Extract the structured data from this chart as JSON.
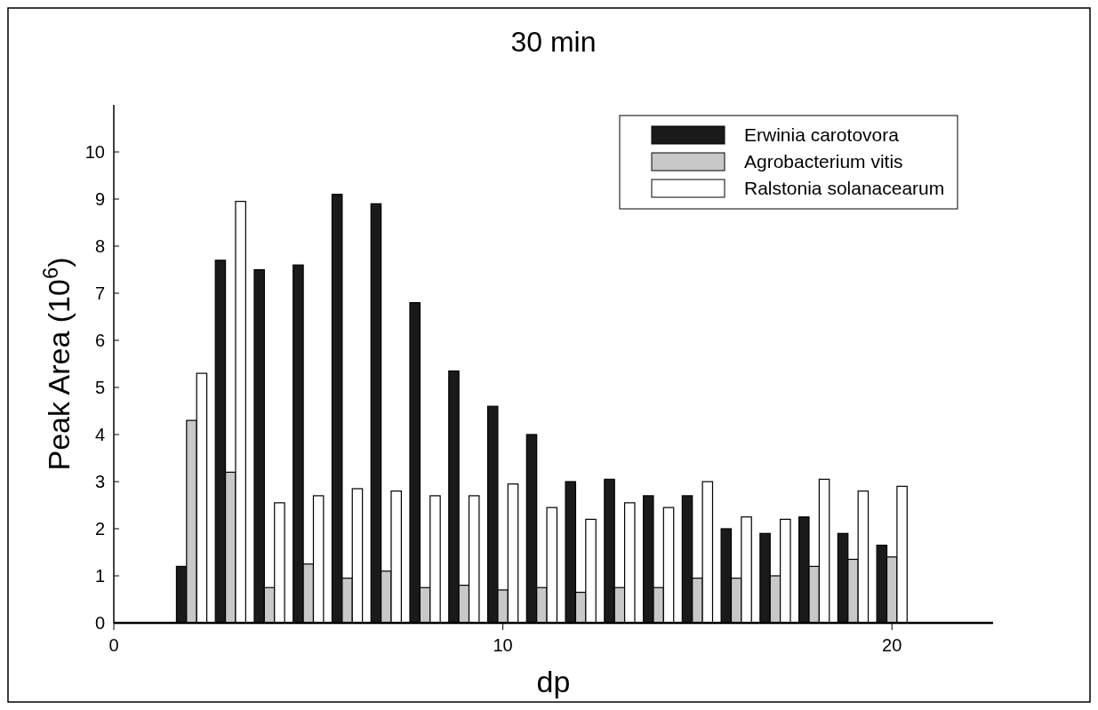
{
  "chart_data": {
    "type": "bar",
    "title": "30 min",
    "xlabel": "dp",
    "ylabel": "Peak Area   (10$^{6}$)",
    "x": [
      2,
      3,
      4,
      5,
      6,
      7,
      8,
      9,
      10,
      11,
      12,
      13,
      14,
      15,
      16,
      17,
      18,
      19,
      20
    ],
    "series": [
      {
        "name": "Erwinia carotovora",
        "color": "#1a1a1a",
        "values": [
          1.2,
          7.7,
          7.5,
          7.6,
          9.1,
          8.9,
          6.8,
          5.35,
          4.6,
          4.0,
          3.0,
          3.05,
          2.7,
          2.7,
          2.0,
          1.9,
          2.25,
          1.9,
          1.65
        ]
      },
      {
        "name": "Agrobacterium vitis",
        "color": "#c8c8c8",
        "values": [
          4.3,
          3.2,
          0.75,
          1.25,
          0.95,
          1.1,
          0.75,
          0.8,
          0.7,
          0.75,
          0.65,
          0.75,
          0.75,
          0.95,
          0.95,
          1.0,
          1.2,
          1.35,
          1.4
        ]
      },
      {
        "name": "Ralstonia solanacearum",
        "color": "#ffffff",
        "values": [
          5.3,
          8.95,
          2.55,
          2.7,
          2.85,
          2.8,
          2.7,
          2.7,
          2.95,
          2.45,
          2.2,
          2.55,
          2.45,
          3.0,
          2.25,
          2.2,
          3.05,
          2.8,
          2.9
        ]
      }
    ],
    "xlim": [
      0,
      22.6
    ],
    "xticks": [
      0,
      10,
      20
    ],
    "ylim": [
      0,
      11
    ],
    "yticks": [
      0,
      1,
      2,
      3,
      4,
      5,
      6,
      7,
      8,
      9,
      10
    ],
    "grid": false,
    "legend": "top right"
  }
}
